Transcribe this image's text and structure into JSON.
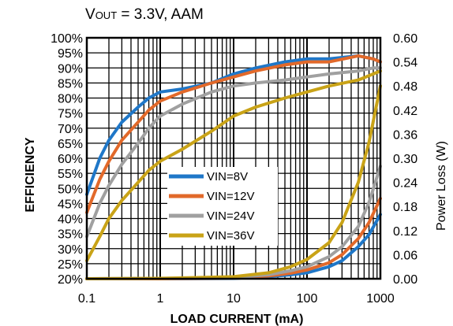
{
  "chart_data": {
    "type": "line",
    "title_main": "V",
    "title_sub": "OUT",
    "title_rest": " = 3.3V, AAM",
    "xlabel": "LOAD CURRENT (mA)",
    "ylabel": "EFFICIENCY",
    "y2label": "Power Loss (W)",
    "x_scale": "log",
    "xlim": [
      0.1,
      1000
    ],
    "ylim": [
      20,
      100
    ],
    "y2lim": [
      0.0,
      0.6
    ],
    "x_ticks": [
      "0.1",
      "1",
      "10",
      "100",
      "1000"
    ],
    "y_ticks": [
      "20%",
      "25%",
      "30%",
      "35%",
      "40%",
      "45%",
      "50%",
      "55%",
      "60%",
      "65%",
      "70%",
      "75%",
      "80%",
      "85%",
      "90%",
      "95%",
      "100%"
    ],
    "y2_ticks": [
      "0.00",
      "0.06",
      "0.12",
      "0.18",
      "0.24",
      "0.30",
      "0.36",
      "0.42",
      "0.48",
      "0.54",
      "0.60"
    ],
    "grid": true,
    "legend_position": "center-left",
    "colors": {
      "VIN=8V": "#1F77C8",
      "VIN=12V": "#E2692A",
      "VIN=24V": "#A0A0A0",
      "VIN=36V": "#C9A317"
    },
    "series": [
      {
        "name": "VIN=8V",
        "efficiency": {
          "x": [
            0.1,
            0.15,
            0.2,
            0.3,
            0.5,
            0.7,
            1,
            2,
            5,
            10,
            20,
            50,
            100,
            200,
            500,
            800,
            1000
          ],
          "y": [
            48,
            60,
            66,
            72,
            77,
            80,
            82,
            83,
            85,
            88,
            90,
            92,
            93,
            93,
            94,
            93,
            92
          ]
        },
        "power_loss": {
          "x": [
            0.1,
            1,
            10,
            30,
            60,
            100,
            200,
            300,
            500,
            700,
            1000
          ],
          "y": [
            0.0,
            0.0,
            0.001,
            0.005,
            0.01,
            0.015,
            0.03,
            0.045,
            0.08,
            0.11,
            0.16
          ]
        }
      },
      {
        "name": "VIN=12V",
        "efficiency": {
          "x": [
            0.1,
            0.15,
            0.2,
            0.3,
            0.5,
            0.7,
            1,
            2,
            5,
            10,
            20,
            50,
            100,
            200,
            500,
            800,
            1000
          ],
          "y": [
            42,
            53,
            59,
            66,
            72,
            76,
            79,
            82,
            85,
            87,
            89,
            91,
            92,
            92,
            94,
            93,
            92
          ]
        },
        "power_loss": {
          "x": [
            0.1,
            1,
            10,
            30,
            60,
            100,
            200,
            300,
            500,
            700,
            1000
          ],
          "y": [
            0.0,
            0.0,
            0.002,
            0.007,
            0.014,
            0.022,
            0.04,
            0.06,
            0.1,
            0.14,
            0.2
          ]
        }
      },
      {
        "name": "VIN=24V",
        "efficiency": {
          "x": [
            0.1,
            0.15,
            0.2,
            0.3,
            0.5,
            0.7,
            1,
            2,
            5,
            10,
            20,
            50,
            100,
            200,
            500,
            800,
            1000
          ],
          "y": [
            34,
            45,
            51,
            58,
            65,
            70,
            74,
            78,
            82,
            84,
            85,
            86,
            87,
            88,
            89,
            90,
            90
          ]
        },
        "power_loss": {
          "x": [
            0.1,
            1,
            10,
            30,
            60,
            100,
            200,
            300,
            500,
            700,
            1000
          ],
          "y": [
            0.0,
            0.001,
            0.003,
            0.01,
            0.02,
            0.03,
            0.055,
            0.08,
            0.13,
            0.19,
            0.28
          ]
        }
      },
      {
        "name": "VIN=36V",
        "efficiency": {
          "x": [
            0.1,
            0.15,
            0.2,
            0.3,
            0.5,
            0.7,
            1,
            2,
            5,
            10,
            20,
            50,
            100,
            200,
            500,
            800,
            1000
          ],
          "y": [
            26,
            34,
            40,
            46,
            52,
            56,
            59,
            63,
            69,
            74,
            77,
            80,
            82,
            84,
            86,
            88,
            89
          ]
        },
        "power_loss": {
          "x": [
            0.1,
            1,
            10,
            30,
            60,
            100,
            200,
            300,
            500,
            700,
            1000
          ],
          "y": [
            0.0,
            0.001,
            0.005,
            0.015,
            0.03,
            0.048,
            0.09,
            0.14,
            0.24,
            0.34,
            0.48
          ]
        }
      }
    ]
  }
}
